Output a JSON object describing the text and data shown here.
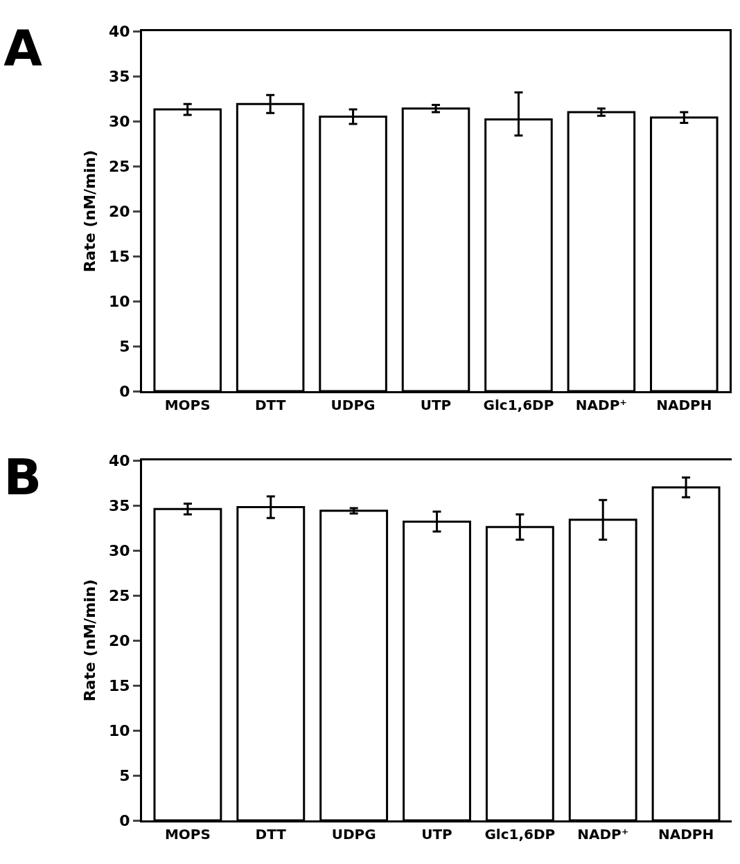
{
  "chart_data": [
    {
      "type": "bar",
      "title": "A",
      "ylabel": "Rate (nM/min)",
      "categories": [
        "MOPS",
        "DTT",
        "UDPG",
        "UTP",
        "Glc1,6DP",
        "NADP⁺",
        "NADPH"
      ],
      "values": [
        31.3,
        31.9,
        30.5,
        31.4,
        30.2,
        31.0,
        30.4
      ],
      "errors": [
        0.6,
        1.0,
        0.8,
        0.4,
        [
          28.4,
          33.2
        ],
        0.4,
        0.6
      ],
      "color": "#ffffff",
      "ylim": [
        0,
        40
      ],
      "yticks": [
        0,
        5,
        10,
        15,
        20,
        25,
        30,
        35,
        40
      ]
    },
    {
      "type": "bar",
      "title": "B",
      "ylabel": "Rate (nM/min)",
      "categories": [
        "MOPS",
        "DTT",
        "UDPG",
        "UTP",
        "Glc1,6DP",
        "NADP⁺",
        "NADPH"
      ],
      "values": [
        34.6,
        34.8,
        34.4,
        33.2,
        32.6,
        33.4,
        37.0
      ],
      "errors": [
        0.6,
        1.2,
        0.3,
        1.1,
        1.4,
        2.2,
        1.1
      ],
      "color": "#ffffff",
      "ylim": [
        0,
        40
      ],
      "yticks": [
        0,
        5,
        10,
        15,
        20,
        25,
        30,
        35,
        40
      ]
    }
  ]
}
